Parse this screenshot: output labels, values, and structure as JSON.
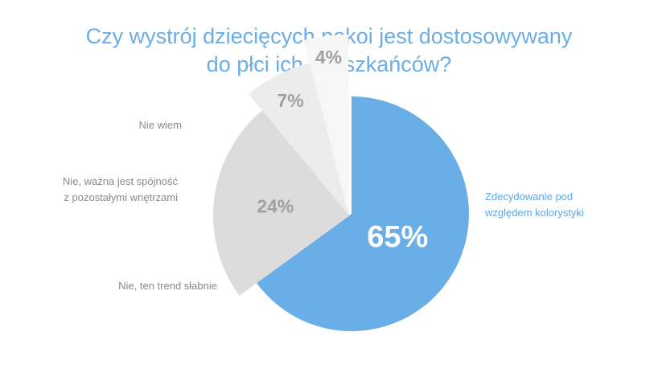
{
  "chart_data": {
    "type": "pie",
    "title_lines": [
      "Czy wystrój dziecięcych pokoi jest dostosowywany",
      "do płci ich mieszkańców?"
    ],
    "slices": [
      {
        "name": "Zdecydowanie pod względem kolorystyki",
        "label_lines": [
          "Zdecydowanie pod",
          "względem kolorystyki"
        ],
        "value": 65,
        "value_label": "65%",
        "color": "#6aaee8",
        "text_color": "#ffffff",
        "label_color": "#5fa6e3"
      },
      {
        "name": "Nie, ten trend słabnie",
        "label_lines": [
          "Nie, ten trend słabnie"
        ],
        "value": 24,
        "value_label": "24%",
        "color": "#dcdcdc",
        "text_color": "#a0a0a0",
        "label_color": "#8a8a8a"
      },
      {
        "name": "Nie, ważna jest spójność z pozostałymi wnętrzami",
        "label_lines": [
          "Nie, ważna jest spójność",
          "z pozostałymi wnętrzami"
        ],
        "value": 7,
        "value_label": "7%",
        "color": "#ececec",
        "text_color": "#a0a0a0",
        "label_color": "#8a8a8a"
      },
      {
        "name": "Nie wiem",
        "label_lines": [
          "Nie wiem"
        ],
        "value": 4,
        "value_label": "4%",
        "color": "#f6f6f6",
        "text_color": "#a0a0a0",
        "label_color": "#8a8a8a"
      }
    ]
  }
}
